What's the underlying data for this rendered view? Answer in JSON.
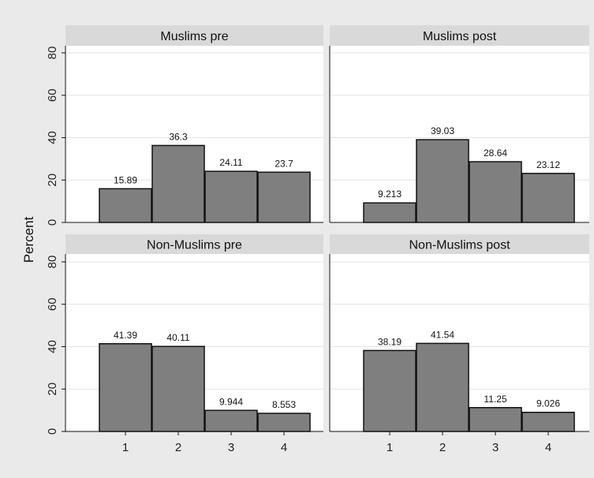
{
  "chart_data": {
    "type": "bar",
    "ylabel": "Percent",
    "ylim": [
      0,
      80
    ],
    "yticks": [
      0,
      20,
      40,
      60,
      80
    ],
    "categories": [
      "1",
      "2",
      "3",
      "4"
    ],
    "grid": true,
    "bar_color": "#7f7f7f",
    "panel_header_color": "#d9d9d9",
    "panels": [
      {
        "title": "Muslims pre",
        "values": [
          15.89,
          36.3,
          24.11,
          23.7
        ],
        "labels": [
          "15.89",
          "36.3",
          "24.11",
          "23.7"
        ]
      },
      {
        "title": "Muslims post",
        "values": [
          9.213,
          39.03,
          28.64,
          23.12
        ],
        "labels": [
          "9.213",
          "39.03",
          "28.64",
          "23.12"
        ]
      },
      {
        "title": "Non-Muslims pre",
        "values": [
          41.39,
          40.11,
          9.944,
          8.553
        ],
        "labels": [
          "41.39",
          "40.11",
          "9.944",
          "8.553"
        ]
      },
      {
        "title": "Non-Muslims post",
        "values": [
          38.19,
          41.54,
          11.25,
          9.026
        ],
        "labels": [
          "38.19",
          "41.54",
          "11.25",
          "9.026"
        ]
      }
    ]
  }
}
